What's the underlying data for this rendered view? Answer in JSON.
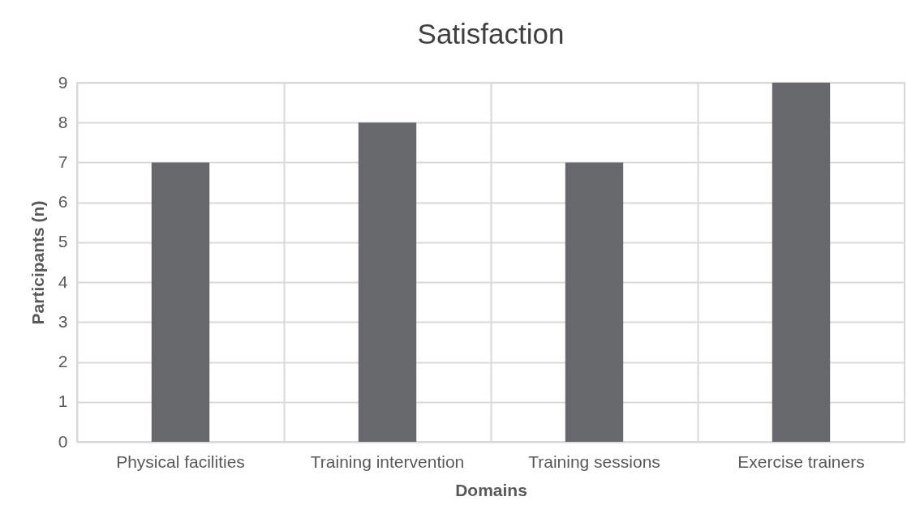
{
  "chart_data": {
    "type": "bar",
    "title": "Satisfaction",
    "xlabel": "Domains",
    "ylabel": "Participants (n)",
    "categories": [
      "Physical facilities",
      "Training intervention",
      "Training sessions",
      "Exercise trainers"
    ],
    "values": [
      7,
      8,
      7,
      9
    ],
    "color": "#67686c",
    "ylim": [
      0,
      9
    ],
    "yticks": [
      0,
      1,
      2,
      3,
      4,
      5,
      6,
      7,
      8,
      9
    ],
    "grid": true
  }
}
